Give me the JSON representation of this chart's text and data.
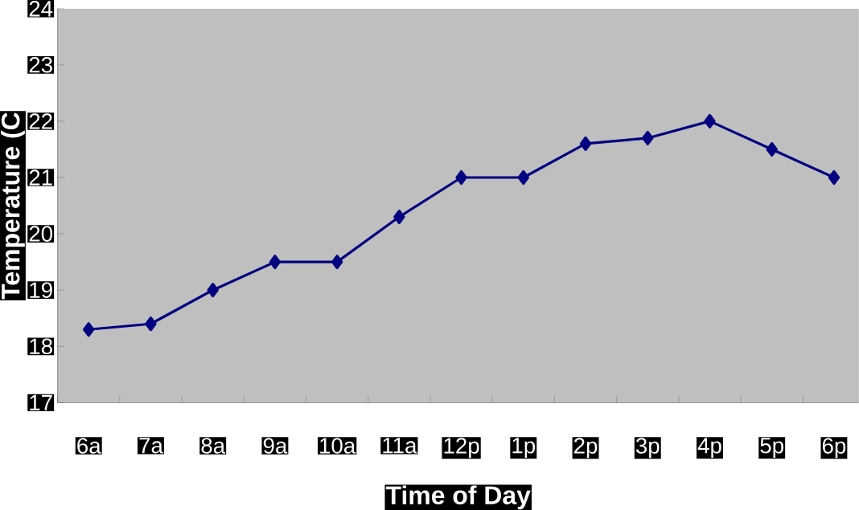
{
  "chart_data": {
    "type": "line",
    "xlabel": "Time of Day",
    "ylabel": "Temperature (C",
    "categories": [
      "6a",
      "7a",
      "8a",
      "9a",
      "10a",
      "11a",
      "12p",
      "1p",
      "2p",
      "3p",
      "4p",
      "5p",
      "6p"
    ],
    "series": [
      {
        "color": "#000080",
        "values": [
          18.3,
          18.4,
          19.0,
          19.5,
          19.5,
          20.3,
          21.0,
          21.0,
          21.6,
          21.7,
          22.0,
          21.5,
          21.0
        ]
      }
    ],
    "ylim": [
      17,
      24
    ],
    "yticks": [
      17,
      18,
      19,
      20,
      21,
      22,
      23,
      24
    ],
    "marker": "diamond",
    "line_style": "solid"
  }
}
